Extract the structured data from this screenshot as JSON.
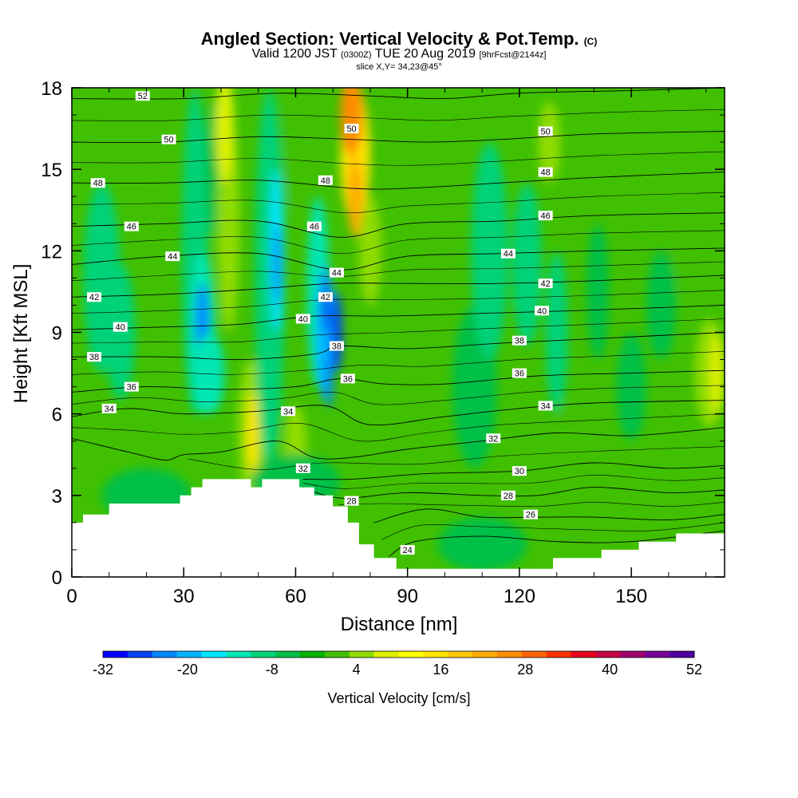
{
  "title": {
    "main": "Angled Section: Vertical Velocity & Pot.Temp.",
    "main_unit": "(C)",
    "valid_prefix": "Valid 1200 JST",
    "valid_utc": "(0300Z)",
    "valid_date": "TUE 20 Aug 2019",
    "forecast": "[9hrFcst@2144z]",
    "slice": "slice X,Y= 34,23@45°"
  },
  "chart_data": {
    "type": "heatmap",
    "xlabel": "Distance [nm]",
    "ylabel": "Height [Kft MSL]",
    "xlim": [
      0,
      175
    ],
    "ylim": [
      0,
      18
    ],
    "xticks": [
      0,
      30,
      60,
      90,
      120,
      150
    ],
    "yticks": [
      0,
      3,
      6,
      9,
      12,
      15,
      18
    ],
    "background_value_cm_s": 0,
    "velocity_cells": [
      {
        "x": 8,
        "y": 11,
        "rx": 5,
        "ry": 3.5,
        "v": -6
      },
      {
        "x": 13,
        "y": 9,
        "rx": 4,
        "ry": 2.5,
        "v": -6
      },
      {
        "x": 33,
        "y": 12,
        "rx": 3.5,
        "ry": 6,
        "v": -6
      },
      {
        "x": 35,
        "y": 9,
        "rx": 3.5,
        "ry": 3,
        "v": -12
      },
      {
        "x": 35,
        "y": 9.3,
        "rx": 1.8,
        "ry": 1.5,
        "v": -22
      },
      {
        "x": 38,
        "y": 15,
        "rx": 2.5,
        "ry": 2.5,
        "v": -4
      },
      {
        "x": 37,
        "y": 7.5,
        "rx": 4,
        "ry": 1.5,
        "v": -12
      },
      {
        "x": 42,
        "y": 13,
        "rx": 3,
        "ry": 4,
        "v": 8
      },
      {
        "x": 41,
        "y": 16.5,
        "rx": 2.5,
        "ry": 2,
        "v": 14
      },
      {
        "x": 48,
        "y": 5.5,
        "rx": 3.5,
        "ry": 2.5,
        "v": 10
      },
      {
        "x": 48.5,
        "y": 5.3,
        "rx": 1.5,
        "ry": 1.5,
        "v": 20
      },
      {
        "x": 53,
        "y": 11,
        "rx": 4,
        "ry": 7,
        "v": -8
      },
      {
        "x": 55,
        "y": 12,
        "rx": 2,
        "ry": 3,
        "v": -16
      },
      {
        "x": 55,
        "y": 11.5,
        "rx": 1,
        "ry": 1.5,
        "v": -22
      },
      {
        "x": 60,
        "y": 16,
        "rx": 3,
        "ry": 2.5,
        "v": 6
      },
      {
        "x": 60,
        "y": 4.8,
        "rx": 3,
        "ry": 1.5,
        "v": 8
      },
      {
        "x": 66,
        "y": 10.5,
        "rx": 3,
        "ry": 3.5,
        "v": -12
      },
      {
        "x": 68,
        "y": 9,
        "rx": 2.5,
        "ry": 2.5,
        "v": -18
      },
      {
        "x": 68,
        "y": 10,
        "rx": 1,
        "ry": 1,
        "v": -26
      },
      {
        "x": 71,
        "y": 9,
        "rx": 1.5,
        "ry": 1.5,
        "v": -26
      },
      {
        "x": 69,
        "y": 7.2,
        "rx": 1,
        "ry": 1,
        "v": -24
      },
      {
        "x": 76,
        "y": 15.5,
        "rx": 4,
        "ry": 2.5,
        "v": 20
      },
      {
        "x": 75,
        "y": 17,
        "rx": 3,
        "ry": 1.5,
        "v": 34
      },
      {
        "x": 76,
        "y": 14,
        "rx": 2,
        "ry": 1.5,
        "v": 28
      },
      {
        "x": 80,
        "y": 12,
        "rx": 3,
        "ry": 2,
        "v": 10
      },
      {
        "x": 90,
        "y": 14,
        "rx": 5,
        "ry": 4,
        "v": 4
      },
      {
        "x": 95,
        "y": 11,
        "rx": 6,
        "ry": 4,
        "v": 6
      },
      {
        "x": 108,
        "y": 7,
        "rx": 6,
        "ry": 3,
        "v": -4
      },
      {
        "x": 112,
        "y": 12,
        "rx": 5,
        "ry": 4,
        "v": -6
      },
      {
        "x": 122,
        "y": 11.5,
        "rx": 4,
        "ry": 3,
        "v": -6
      },
      {
        "x": 128,
        "y": 16,
        "rx": 3,
        "ry": 1.5,
        "v": 10
      },
      {
        "x": 130,
        "y": 9,
        "rx": 3,
        "ry": 3,
        "v": -8
      },
      {
        "x": 132,
        "y": 4.5,
        "rx": 3,
        "ry": 2,
        "v": 6
      },
      {
        "x": 141,
        "y": 10.5,
        "rx": 3,
        "ry": 2.5,
        "v": -4
      },
      {
        "x": 150,
        "y": 7,
        "rx": 4,
        "ry": 2,
        "v": -4
      },
      {
        "x": 158,
        "y": 10,
        "rx": 4,
        "ry": 2,
        "v": -4
      },
      {
        "x": 165,
        "y": 13,
        "rx": 4,
        "ry": 3,
        "v": 4
      },
      {
        "x": 171,
        "y": 7.5,
        "rx": 4,
        "ry": 2,
        "v": 8
      },
      {
        "x": 173,
        "y": 7.5,
        "rx": 2,
        "ry": 1.5,
        "v": 12
      },
      {
        "x": 110,
        "y": 1.2,
        "rx": 12,
        "ry": 1,
        "v": -4
      },
      {
        "x": 60,
        "y": 3.5,
        "rx": 12,
        "ry": 1,
        "v": -4
      },
      {
        "x": 20,
        "y": 3,
        "rx": 12,
        "ry": 1,
        "v": -4
      },
      {
        "x": 150,
        "y": 2.5,
        "rx": 12,
        "ry": 1,
        "v": 4
      }
    ],
    "terrain": [
      [
        0,
        2
      ],
      [
        3,
        2
      ],
      [
        3,
        2.3
      ],
      [
        10,
        2.3
      ],
      [
        10,
        2.7
      ],
      [
        29,
        2.7
      ],
      [
        29,
        3
      ],
      [
        32,
        3
      ],
      [
        32,
        3.3
      ],
      [
        35,
        3.3
      ],
      [
        35,
        3.6
      ],
      [
        48,
        3.6
      ],
      [
        48,
        3.3
      ],
      [
        51,
        3.3
      ],
      [
        51,
        3.6
      ],
      [
        61,
        3.6
      ],
      [
        61,
        3.3
      ],
      [
        65,
        3.3
      ],
      [
        65,
        3
      ],
      [
        70,
        3
      ],
      [
        70,
        2.6
      ],
      [
        74,
        2.6
      ],
      [
        74,
        2
      ],
      [
        77,
        2
      ],
      [
        77,
        1.2
      ],
      [
        81,
        1.2
      ],
      [
        81,
        0.7
      ],
      [
        87,
        0.7
      ],
      [
        87,
        0.3
      ],
      [
        129,
        0.3
      ],
      [
        129,
        0.7
      ],
      [
        142,
        0.7
      ],
      [
        142,
        1
      ],
      [
        152,
        1
      ],
      [
        152,
        1.3
      ],
      [
        162,
        1.3
      ],
      [
        162,
        1.6
      ],
      [
        175,
        1.6
      ]
    ],
    "isentropes": [
      {
        "value": 24,
        "x_end": 94,
        "points": [
          [
            85,
            0.75
          ],
          [
            92,
            1.3
          ],
          [
            110,
            1.5
          ],
          [
            130,
            1.3
          ],
          [
            150,
            1.3
          ],
          [
            175,
            1.7
          ]
        ]
      },
      {
        "value": 26,
        "points": [
          [
            81,
            2
          ],
          [
            95,
            2.5
          ],
          [
            110,
            2.2
          ],
          [
            125,
            2.2
          ],
          [
            140,
            2.2
          ],
          [
            160,
            2.1
          ],
          [
            175,
            2.3
          ]
        ]
      },
      {
        "value": 28,
        "points": [
          [
            62,
            3.3
          ],
          [
            72,
            2.9
          ],
          [
            90,
            3.1
          ],
          [
            110,
            3
          ],
          [
            125,
            3
          ],
          [
            140,
            3.3
          ],
          [
            160,
            3.1
          ],
          [
            175,
            3.2
          ]
        ]
      },
      {
        "value": 30,
        "points": [
          [
            62,
            3.6
          ],
          [
            75,
            3.6
          ],
          [
            95,
            3.8
          ],
          [
            120,
            3.9
          ],
          [
            140,
            4.2
          ],
          [
            160,
            4
          ],
          [
            175,
            4.1
          ]
        ]
      },
      {
        "value": 32,
        "points": [
          [
            0,
            5.1
          ],
          [
            15,
            4.6
          ],
          [
            25,
            4.3
          ],
          [
            30,
            4.5
          ],
          [
            40,
            4.6
          ],
          [
            55,
            5
          ],
          [
            65,
            4.4
          ],
          [
            75,
            4.4
          ],
          [
            90,
            4.7
          ],
          [
            110,
            5
          ],
          [
            130,
            5.3
          ],
          [
            150,
            5.2
          ],
          [
            175,
            5.5
          ]
        ]
      },
      {
        "value": 34,
        "points": [
          [
            0,
            5.9
          ],
          [
            15,
            6.2
          ],
          [
            30,
            6
          ],
          [
            50,
            6.1
          ],
          [
            68,
            6.3
          ],
          [
            80,
            5.6
          ],
          [
            100,
            5.9
          ],
          [
            120,
            6.2
          ],
          [
            140,
            6.4
          ],
          [
            175,
            6.5
          ]
        ]
      },
      {
        "value": 36,
        "points": [
          [
            0,
            6.8
          ],
          [
            20,
            7
          ],
          [
            40,
            6.9
          ],
          [
            60,
            7
          ],
          [
            72,
            7.3
          ],
          [
            84,
            7.1
          ],
          [
            100,
            7.1
          ],
          [
            125,
            7.4
          ],
          [
            150,
            7.5
          ],
          [
            175,
            7.6
          ]
        ]
      },
      {
        "value": 38,
        "points": [
          [
            0,
            8.1
          ],
          [
            25,
            8.1
          ],
          [
            45,
            8
          ],
          [
            65,
            8.2
          ],
          [
            72,
            8.5
          ],
          [
            90,
            8.4
          ],
          [
            115,
            8.6
          ],
          [
            145,
            8.8
          ],
          [
            175,
            9
          ]
        ]
      },
      {
        "value": 40,
        "points": [
          [
            0,
            9.1
          ],
          [
            25,
            9.2
          ],
          [
            45,
            9.3
          ],
          [
            65,
            9.6
          ],
          [
            85,
            9.6
          ],
          [
            110,
            9.7
          ],
          [
            135,
            9.8
          ],
          [
            175,
            10
          ]
        ]
      },
      {
        "value": 42,
        "points": [
          [
            0,
            10.3
          ],
          [
            25,
            10.4
          ],
          [
            50,
            10.6
          ],
          [
            70,
            10.8
          ],
          [
            90,
            10.8
          ],
          [
            115,
            10.8
          ],
          [
            140,
            10.9
          ],
          [
            175,
            11.1
          ]
        ]
      },
      {
        "value": 44,
        "points": [
          [
            0,
            11.5
          ],
          [
            25,
            11.8
          ],
          [
            50,
            11.9
          ],
          [
            72,
            11.3
          ],
          [
            90,
            11.8
          ],
          [
            115,
            11.9
          ],
          [
            140,
            12
          ],
          [
            175,
            12.1
          ]
        ]
      },
      {
        "value": 46,
        "points": [
          [
            0,
            12.9
          ],
          [
            25,
            13
          ],
          [
            50,
            13.1
          ],
          [
            72,
            12.5
          ],
          [
            90,
            13
          ],
          [
            115,
            13.1
          ],
          [
            140,
            13.3
          ],
          [
            175,
            13.4
          ]
        ]
      },
      {
        "value": 48,
        "points": [
          [
            0,
            14.5
          ],
          [
            25,
            14.5
          ],
          [
            50,
            14.6
          ],
          [
            75,
            14.3
          ],
          [
            90,
            14.3
          ],
          [
            115,
            14.5
          ],
          [
            140,
            14.7
          ],
          [
            175,
            14.9
          ]
        ]
      },
      {
        "value": 50,
        "points": [
          [
            0,
            16
          ],
          [
            25,
            16
          ],
          [
            50,
            16.2
          ],
          [
            75,
            16.1
          ],
          [
            95,
            16
          ],
          [
            115,
            16.1
          ],
          [
            140,
            16.3
          ],
          [
            175,
            16.4
          ]
        ]
      },
      {
        "value": 52,
        "points": [
          [
            0,
            17.6
          ],
          [
            30,
            17.6
          ],
          [
            55,
            17.8
          ],
          [
            80,
            17.7
          ],
          [
            100,
            17.6
          ],
          [
            120,
            17.8
          ],
          [
            150,
            17.9
          ],
          [
            175,
            18
          ]
        ]
      }
    ],
    "isentrope_labels": [
      {
        "text": "52",
        "x": 19,
        "y": 17.7
      },
      {
        "text": "50",
        "x": 26,
        "y": 16.1
      },
      {
        "text": "48",
        "x": 7,
        "y": 14.5
      },
      {
        "text": "46",
        "x": 16,
        "y": 12.9
      },
      {
        "text": "44",
        "x": 27,
        "y": 11.8
      },
      {
        "text": "42",
        "x": 6,
        "y": 10.3
      },
      {
        "text": "40",
        "x": 13,
        "y": 9.2
      },
      {
        "text": "38",
        "x": 6,
        "y": 8.1
      },
      {
        "text": "36",
        "x": 16,
        "y": 7
      },
      {
        "text": "34",
        "x": 10,
        "y": 6.2
      },
      {
        "text": "50",
        "x": 75,
        "y": 16.5
      },
      {
        "text": "48",
        "x": 68,
        "y": 14.6
      },
      {
        "text": "46",
        "x": 65,
        "y": 12.9
      },
      {
        "text": "44",
        "x": 71,
        "y": 11.2
      },
      {
        "text": "42",
        "x": 68,
        "y": 10.3
      },
      {
        "text": "40",
        "x": 62,
        "y": 9.5
      },
      {
        "text": "38",
        "x": 71,
        "y": 8.5
      },
      {
        "text": "36",
        "x": 74,
        "y": 7.3
      },
      {
        "text": "34",
        "x": 58,
        "y": 6.1
      },
      {
        "text": "32",
        "x": 62,
        "y": 4
      },
      {
        "text": "28",
        "x": 75,
        "y": 2.8
      },
      {
        "text": "24",
        "x": 90,
        "y": 1
      },
      {
        "text": "50",
        "x": 127,
        "y": 16.4
      },
      {
        "text": "48",
        "x": 127,
        "y": 14.9
      },
      {
        "text": "46",
        "x": 127,
        "y": 13.3
      },
      {
        "text": "44",
        "x": 117,
        "y": 11.9
      },
      {
        "text": "42",
        "x": 127,
        "y": 10.8
      },
      {
        "text": "40",
        "x": 126,
        "y": 9.8
      },
      {
        "text": "38",
        "x": 120,
        "y": 8.7
      },
      {
        "text": "36",
        "x": 120,
        "y": 7.5
      },
      {
        "text": "34",
        "x": 127,
        "y": 6.3
      },
      {
        "text": "32",
        "x": 113,
        "y": 5.1
      },
      {
        "text": "30",
        "x": 120,
        "y": 3.9
      },
      {
        "text": "28",
        "x": 117,
        "y": 3
      },
      {
        "text": "26",
        "x": 123,
        "y": 2.3
      }
    ],
    "colorbar": {
      "label": "Vertical Velocity [cm/s]",
      "min": -32,
      "max": 52,
      "step": 4,
      "tick_labels": [
        "-32",
        "-20",
        "-8",
        "4",
        "16",
        "28",
        "40",
        "52"
      ],
      "tick_values": [
        -32,
        -20,
        -8,
        4,
        16,
        28,
        40,
        52
      ],
      "colors": [
        "#0000ff",
        "#0044f0",
        "#0088ff",
        "#00b4ff",
        "#00e6ff",
        "#00e6b4",
        "#00d278",
        "#00c046",
        "#00b400",
        "#40c000",
        "#90dc00",
        "#ddf000",
        "#ffff00",
        "#ffe600",
        "#ffc800",
        "#ffaa00",
        "#ff8c00",
        "#ff6400",
        "#ff3200",
        "#e6001e",
        "#c80046",
        "#a0006e",
        "#780096",
        "#5000a0"
      ]
    }
  }
}
